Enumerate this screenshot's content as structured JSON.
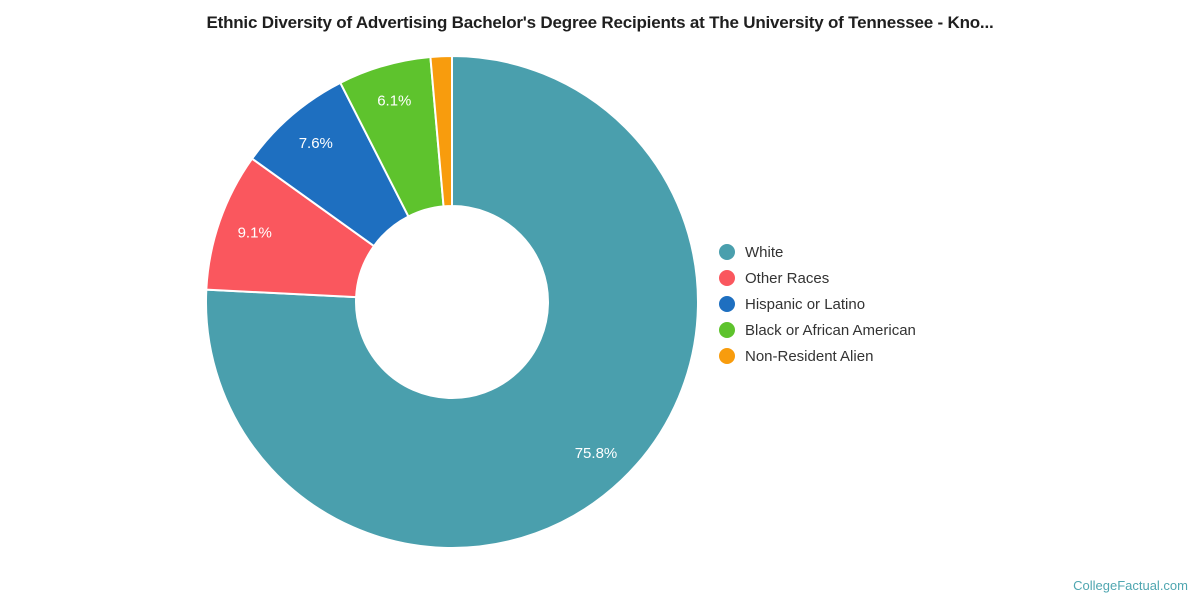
{
  "chart_data": {
    "type": "pie",
    "subtype": "donut",
    "title": "Ethnic Diversity of Advertising Bachelor's Degree Recipients at The University of Tennessee - Kno...",
    "legend_position": "right",
    "direction": "clockwise",
    "start_angle_deg": 0,
    "label_text_color": "#FFFFFF",
    "series": [
      {
        "name": "White",
        "value": 75.8,
        "label": "75.8%",
        "color": "#4A9FAD"
      },
      {
        "name": "Other Races",
        "value": 9.1,
        "label": "9.1%",
        "color": "#FA575E"
      },
      {
        "name": "Hispanic or Latino",
        "value": 7.6,
        "label": "7.6%",
        "color": "#1E6FC0"
      },
      {
        "name": "Black or African American",
        "value": 6.1,
        "label": "6.1%",
        "color": "#5EC32D"
      },
      {
        "name": "Non-Resident Alien",
        "value": 1.4,
        "label": "",
        "color": "#F89C0D"
      }
    ]
  },
  "watermark": {
    "text": "CollegeFactual.com",
    "color": "#4FA6B0"
  }
}
